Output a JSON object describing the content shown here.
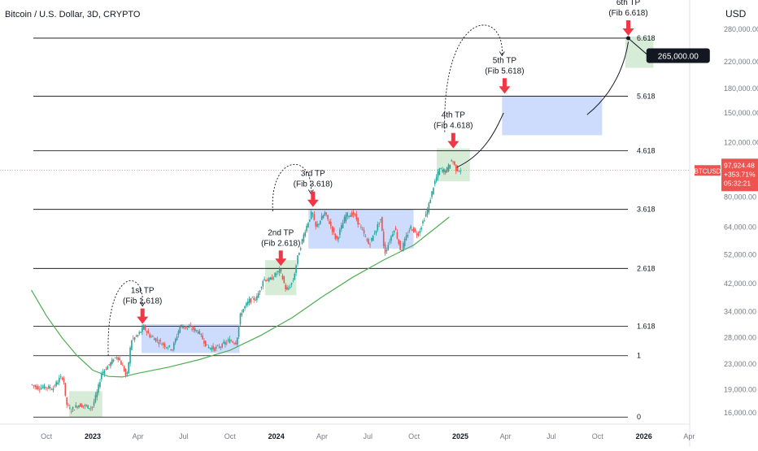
{
  "header": {
    "title": "Bitcoin / U.S. Dollar, 3D, CRYPTO",
    "currency": "USD"
  },
  "colors": {
    "bull": "#26a69a",
    "bear": "#ef5350",
    "ma": "#4caf50",
    "arrow": "#f23645",
    "blue_box": "#bcd0fb",
    "green_box": "#c8e6c9",
    "level": "#000000"
  },
  "price_tag": {
    "symbol": "BTCUSD",
    "price": "97,924.48",
    "change": "+353.71%",
    "countdown": "05:32:21"
  },
  "target_label": "265,000.00",
  "chart_data": {
    "type": "candlestick",
    "symbol": "BTCUSD",
    "interval": "3D",
    "y_scale": "log",
    "y_ticks": [
      {
        "label": "16,000.00",
        "value": 16000
      },
      {
        "label": "19,000.00",
        "value": 19000
      },
      {
        "label": "23,000.00",
        "value": 23000
      },
      {
        "label": "28,000.00",
        "value": 28000
      },
      {
        "label": "34,000.00",
        "value": 34000
      },
      {
        "label": "42,000.00",
        "value": 42000
      },
      {
        "label": "52,000.00",
        "value": 52000
      },
      {
        "label": "64,000.00",
        "value": 64000
      },
      {
        "label": "80,000.00",
        "value": 80000
      },
      {
        "label": "120,000.00",
        "value": 120000
      },
      {
        "label": "150,000.00",
        "value": 150000
      },
      {
        "label": "180,000.00",
        "value": 180000
      },
      {
        "label": "220,000.00",
        "value": 220000
      },
      {
        "label": "280,000.00",
        "value": 280000
      }
    ],
    "x_ticks": [
      {
        "label": "Oct",
        "date": "2022-10-01"
      },
      {
        "label": "2023",
        "date": "2023-01-01"
      },
      {
        "label": "Apr",
        "date": "2023-04-01"
      },
      {
        "label": "Jul",
        "date": "2023-07-01"
      },
      {
        "label": "Oct",
        "date": "2023-10-01"
      },
      {
        "label": "2024",
        "date": "2024-01-01"
      },
      {
        "label": "Apr",
        "date": "2024-04-01"
      },
      {
        "label": "Jul",
        "date": "2024-07-01"
      },
      {
        "label": "Oct",
        "date": "2024-10-01"
      },
      {
        "label": "2025",
        "date": "2025-01-01"
      },
      {
        "label": "Apr",
        "date": "2025-04-01"
      },
      {
        "label": "Jul",
        "date": "2025-07-01"
      },
      {
        "label": "Oct",
        "date": "2025-10-01"
      },
      {
        "label": "2026",
        "date": "2026-01-01"
      },
      {
        "label": "Apr",
        "date": "2026-04-01"
      }
    ],
    "fib_levels": [
      {
        "label": "0",
        "value": 15500
      },
      {
        "label": "1",
        "value": 24500
      },
      {
        "label": "1.618",
        "value": 30500
      },
      {
        "label": "2.618",
        "value": 47000
      },
      {
        "label": "3.618",
        "value": 73000
      },
      {
        "label": "4.618",
        "value": 113000
      },
      {
        "label": "5.618",
        "value": 170000
      },
      {
        "label": "6.618",
        "value": 262000
      }
    ],
    "price_path": [
      [
        "2022-09-01",
        19800
      ],
      [
        "2022-09-15",
        19300
      ],
      [
        "2022-10-01",
        19400
      ],
      [
        "2022-10-15",
        19200
      ],
      [
        "2022-10-28",
        20600
      ],
      [
        "2022-11-05",
        21000
      ],
      [
        "2022-11-10",
        17200
      ],
      [
        "2022-11-20",
        16300
      ],
      [
        "2022-12-05",
        17000
      ],
      [
        "2022-12-20",
        16800
      ],
      [
        "2023-01-01",
        16600
      ],
      [
        "2023-01-12",
        18800
      ],
      [
        "2023-01-20",
        21500
      ],
      [
        "2023-02-05",
        23000
      ],
      [
        "2023-02-20",
        24500
      ],
      [
        "2023-03-05",
        22300
      ],
      [
        "2023-03-11",
        20600
      ],
      [
        "2023-03-20",
        27500
      ],
      [
        "2023-04-01",
        28400
      ],
      [
        "2023-04-14",
        30300
      ],
      [
        "2023-04-25",
        28500
      ],
      [
        "2023-05-10",
        27500
      ],
      [
        "2023-05-25",
        26500
      ],
      [
        "2023-06-10",
        25800
      ],
      [
        "2023-06-25",
        30500
      ],
      [
        "2023-07-15",
        30200
      ],
      [
        "2023-08-01",
        29300
      ],
      [
        "2023-08-18",
        26200
      ],
      [
        "2023-09-01",
        25800
      ],
      [
        "2023-09-15",
        26400
      ],
      [
        "2023-10-01",
        27500
      ],
      [
        "2023-10-15",
        27000
      ],
      [
        "2023-10-24",
        33800
      ],
      [
        "2023-11-10",
        37000
      ],
      [
        "2023-11-25",
        37800
      ],
      [
        "2023-12-08",
        43500
      ],
      [
        "2023-12-20",
        43000
      ],
      [
        "2024-01-10",
        46500
      ],
      [
        "2024-01-23",
        39500
      ],
      [
        "2024-02-05",
        43000
      ],
      [
        "2024-02-15",
        52000
      ],
      [
        "2024-02-28",
        62000
      ],
      [
        "2024-03-14",
        72000
      ],
      [
        "2024-03-20",
        63500
      ],
      [
        "2024-04-08",
        71000
      ],
      [
        "2024-04-20",
        64500
      ],
      [
        "2024-05-01",
        58000
      ],
      [
        "2024-05-20",
        70000
      ],
      [
        "2024-06-05",
        70500
      ],
      [
        "2024-06-25",
        60500
      ],
      [
        "2024-07-05",
        56000
      ],
      [
        "2024-07-28",
        68000
      ],
      [
        "2024-08-05",
        52500
      ],
      [
        "2024-08-25",
        64000
      ],
      [
        "2024-09-06",
        53500
      ],
      [
        "2024-09-25",
        64000
      ],
      [
        "2024-10-10",
        60500
      ],
      [
        "2024-10-29",
        72500
      ],
      [
        "2024-11-11",
        88000
      ],
      [
        "2024-11-22",
        98500
      ],
      [
        "2024-12-05",
        97000
      ],
      [
        "2024-12-17",
        106000
      ],
      [
        "2024-12-25",
        98500
      ],
      [
        "2025-01-05",
        97924
      ]
    ],
    "moving_average": [
      [
        "2022-09-01",
        40000
      ],
      [
        "2022-10-01",
        33000
      ],
      [
        "2022-11-01",
        28000
      ],
      [
        "2022-12-01",
        24500
      ],
      [
        "2023-01-01",
        22000
      ],
      [
        "2023-02-01",
        21000
      ],
      [
        "2023-03-01",
        20900
      ],
      [
        "2023-04-01",
        21500
      ],
      [
        "2023-06-01",
        22500
      ],
      [
        "2023-08-01",
        23800
      ],
      [
        "2023-10-01",
        25500
      ],
      [
        "2023-12-01",
        28500
      ],
      [
        "2024-02-01",
        32500
      ],
      [
        "2024-04-01",
        38000
      ],
      [
        "2024-06-01",
        44000
      ],
      [
        "2024-08-01",
        50000
      ],
      [
        "2024-10-01",
        56000
      ],
      [
        "2024-11-15",
        64000
      ],
      [
        "2024-12-10",
        69000
      ]
    ],
    "annotations": [
      {
        "title": "1st TP",
        "subtitle": "(Fib 1.618)",
        "date": "2023-04-10",
        "value": 30500
      },
      {
        "title": "2nd TP",
        "subtitle": "(Fib 2.618)",
        "date": "2024-01-10",
        "value": 47000
      },
      {
        "title": "3rd TP",
        "subtitle": "(Fib 3.618)",
        "date": "2024-03-14",
        "value": 73000
      },
      {
        "title": "4th TP",
        "subtitle": "(Fib 4.618)",
        "date": "2024-12-18",
        "value": 113000
      },
      {
        "title": "5th TP",
        "subtitle": "(Fib 5.618)",
        "date": "2025-03-30",
        "value": 170000
      },
      {
        "title": "6th TP",
        "subtitle": "(Fib 6.618)",
        "date": "2025-12-01",
        "value": 262000
      }
    ],
    "target_price": 265000,
    "current_price": 97924.48
  }
}
